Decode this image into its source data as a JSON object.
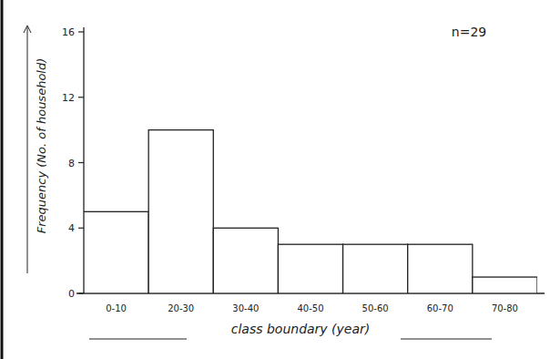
{
  "chart_data": {
    "type": "bar",
    "annotation": "n=29",
    "xlabel": "class boundary (year)",
    "ylabel": "Frequency (No. of household)",
    "categories": [
      "0-10",
      "20-30",
      "30-40",
      "40-50",
      "50-60",
      "60-70",
      "70-80"
    ],
    "values": [
      5,
      10,
      4,
      3,
      3,
      3,
      1
    ],
    "color": "#ffffff",
    "ylim": [
      0,
      16
    ],
    "yticks": [
      0,
      4,
      8,
      12,
      16
    ],
    "grid": false
  }
}
